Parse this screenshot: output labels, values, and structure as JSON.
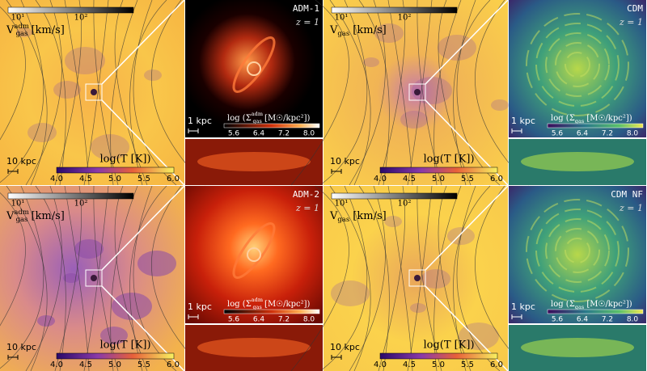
{
  "panels": [
    {
      "title": "ADM-1",
      "redshift": "z = 1",
      "velocity_label": {
        "symbol": "V",
        "sub": "gas",
        "sup": "adm",
        "unit": " [km/s]"
      },
      "velocity_ticks": [
        "10¹",
        "10²"
      ],
      "temperature_label": "log(T [K])",
      "temperature_ticks": [
        "4.0",
        "4.5",
        "5.0",
        "5.5",
        "6.0"
      ],
      "density_label": {
        "prefix": "log (Σ",
        "sub": "gas",
        "sup": "adm",
        "unit": " [M☉/kpc²])"
      },
      "density_ticks": [
        "5.6",
        "6.4",
        "7.2",
        "8.0"
      ],
      "small_scale": "1 kpc",
      "large_scale": "10 kpc"
    },
    {
      "title": "CDM",
      "redshift": "z = 1",
      "velocity_label": {
        "symbol": "V",
        "sub": "gas",
        "unit": " [km/s]"
      },
      "velocity_ticks": [
        "10¹",
        "10²"
      ],
      "temperature_label": "log(T [K])",
      "temperature_ticks": [
        "4.0",
        "4.5",
        "5.0",
        "5.5",
        "6.0"
      ],
      "density_label": {
        "prefix": "log (Σ",
        "sub": "gas",
        "unit": " [M☉/kpc²])"
      },
      "density_ticks": [
        "5.6",
        "6.4",
        "7.2",
        "8.0"
      ],
      "small_scale": "1 kpc",
      "large_scale": "10 kpc"
    },
    {
      "title": "ADM-2",
      "redshift": "z = 1",
      "velocity_label": {
        "symbol": "V",
        "sub": "gas",
        "sup": "adm",
        "unit": " [km/s]"
      },
      "velocity_ticks": [
        "10¹",
        "10²"
      ],
      "temperature_label": "log(T [K])",
      "temperature_ticks": [
        "4.0",
        "4.5",
        "5.0",
        "5.5",
        "6.0"
      ],
      "density_label": {
        "prefix": "log (Σ",
        "sub": "gas",
        "sup": "adm",
        "unit": " [M☉/kpc²])"
      },
      "density_ticks": [
        "5.6",
        "6.4",
        "7.2",
        "8.0"
      ],
      "small_scale": "1 kpc",
      "large_scale": "10 kpc"
    },
    {
      "title": "CDM NF",
      "redshift": "z = 1",
      "velocity_label": {
        "symbol": "V",
        "sub": "gas",
        "unit": " [km/s]"
      },
      "velocity_ticks": [
        "10¹",
        "10²"
      ],
      "temperature_label": "log(T [K])",
      "temperature_ticks": [
        "4.0",
        "4.5",
        "5.0",
        "5.5",
        "6.0"
      ],
      "density_label": {
        "prefix": "log (Σ",
        "sub": "gas",
        "unit": " [M☉/kpc²])"
      },
      "density_ticks": [
        "5.6",
        "6.4",
        "7.2",
        "8.0"
      ],
      "small_scale": "1 kpc",
      "large_scale": "10 kpc"
    }
  ]
}
